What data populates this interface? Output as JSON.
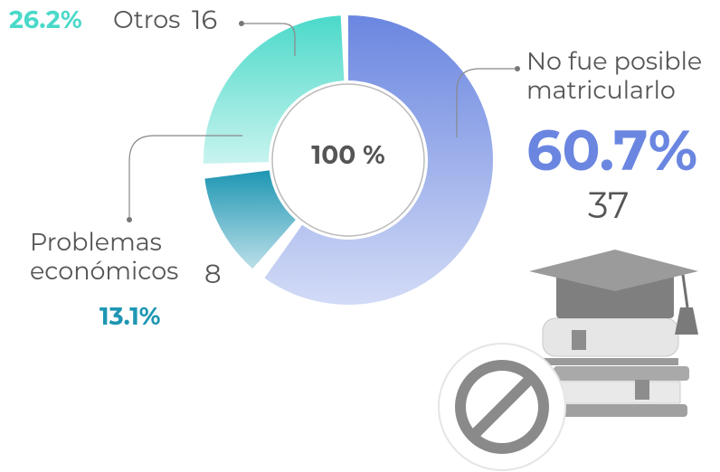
{
  "chart_data": {
    "type": "donut",
    "center_label": "100 %",
    "categories": [
      "No fue posible matricularlo",
      "Problemas económicos",
      "Otros"
    ],
    "values": [
      37,
      8,
      16
    ],
    "percentages": [
      60.7,
      13.1,
      26.2
    ],
    "percentage_labels": [
      "60.7%",
      "13.1%",
      "26.2%"
    ],
    "colors": [
      "#6a86e0",
      "#1e96b3",
      "#4ad9c9"
    ]
  }
}
